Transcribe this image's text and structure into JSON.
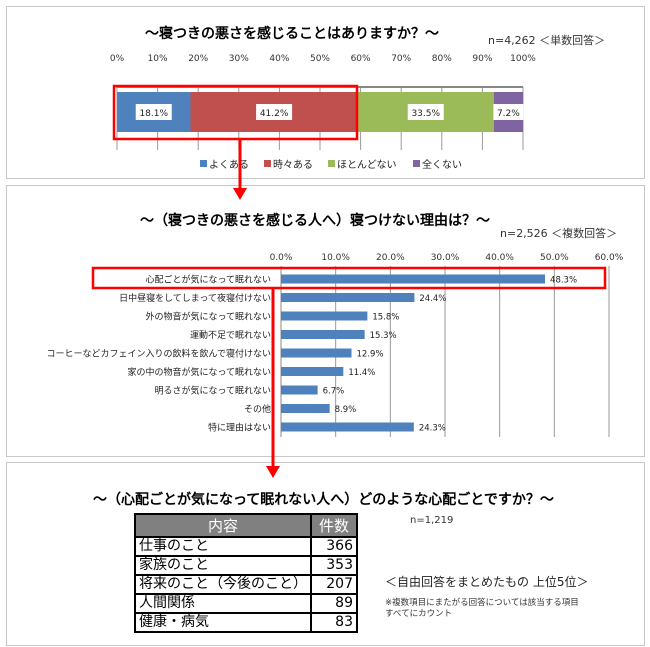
{
  "chart_data": [
    {
      "type": "bar",
      "orientation": "horizontal",
      "stacked": true,
      "title": "～寝つきの悪さを感じることはありますか？～",
      "subtitle": "n=4,262 ＜単数回答＞",
      "xlim": [
        0,
        100
      ],
      "ticks": [
        "0%",
        "10%",
        "20%",
        "30%",
        "40%",
        "50%",
        "60%",
        "70%",
        "80%",
        "90%",
        "100%"
      ],
      "series": [
        {
          "name": "よくある",
          "value": 18.1,
          "label": "18.1%",
          "color": "#4f81bd"
        },
        {
          "name": "時々ある",
          "value": 41.2,
          "label": "41.2%",
          "color": "#c0504d"
        },
        {
          "name": "ほとんどない",
          "value": 33.5,
          "label": "33.5%",
          "color": "#9bbb59"
        },
        {
          "name": "全くない",
          "value": 7.2,
          "label": "7.2%",
          "color": "#8064a2"
        }
      ],
      "legend": "bottom",
      "grid": true
    },
    {
      "type": "bar",
      "orientation": "horizontal",
      "title": "～（寝つきの悪さを感じる人へ）寝つけない理由は？～",
      "subtitle": "n=2,526 ＜複数回答＞",
      "xlim": [
        0,
        60
      ],
      "ticks": [
        "0.0%",
        "10.0%",
        "20.0%",
        "30.0%",
        "40.0%",
        "50.0%",
        "60.0%"
      ],
      "categories": [
        "心配ごとが気になって眠れない",
        "日中昼寝をしてしまって夜寝付けない",
        "外の物音が気になって眠れない",
        "運動不足で眠れない",
        "コーヒーなどカフェイン入りの飲料を飲んで寝付けない",
        "家の中の物音が気になって眠れない",
        "明るさが気になって眠れない",
        "その他",
        "特に理由はない"
      ],
      "values": [
        48.3,
        24.4,
        15.8,
        15.3,
        12.9,
        11.4,
        6.7,
        8.9,
        24.3
      ],
      "labels": [
        "48.3%",
        "24.4%",
        "15.8%",
        "15.3%",
        "12.9%",
        "11.4%",
        "6.7%",
        "8.9%",
        "24.3%"
      ],
      "color": "#4f81bd",
      "grid": true
    }
  ],
  "panel3": {
    "title": "～（心配ごとが気になって眠れない人へ）どのような心配ごとですか？～",
    "n": "n=1,219",
    "note": "＜自由回答をまとめたもの 上位5位＞",
    "footnote1": "※複数項目にまたがる回答については該当する項目",
    "footnote2": "すべてにカウント",
    "headers": [
      "内容",
      "件数"
    ],
    "rows": [
      [
        "仕事のこと",
        "366"
      ],
      [
        "家族のこと",
        "353"
      ],
      [
        "将来のこと（今後のこと）",
        "207"
      ],
      [
        "人間関係",
        "89"
      ],
      [
        "健康・病気",
        "83"
      ]
    ]
  },
  "highlight_color": "#ff0000"
}
